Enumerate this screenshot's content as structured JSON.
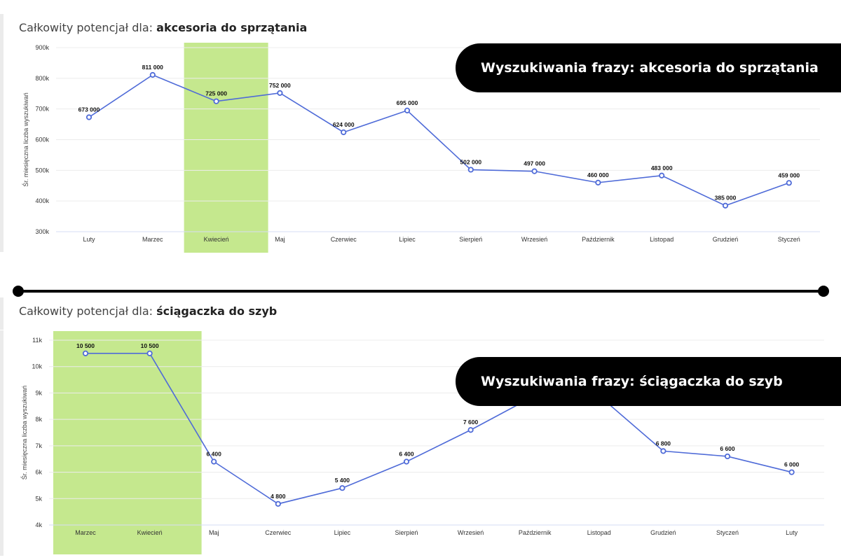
{
  "chart_data": [
    {
      "type": "line",
      "title_prefix": "Całkowity potencjał dla:",
      "title_keyword": "akcesoria do sprzątania",
      "ylabel": "Śr. miesięczna liczba wyszukiwań",
      "ylim": [
        300000,
        900000
      ],
      "yticks": [
        300000,
        400000,
        500000,
        600000,
        700000,
        800000,
        900000
      ],
      "ytick_labels": [
        "300k",
        "400k",
        "500k",
        "600k",
        "700k",
        "800k",
        "900k"
      ],
      "categories": [
        "Luty",
        "Marzec",
        "Kwiecień",
        "Maj",
        "Czerwiec",
        "Lipiec",
        "Sierpień",
        "Wrzesień",
        "Październik",
        "Listopad",
        "Grudzień",
        "Styczeń"
      ],
      "series": [
        {
          "values": [
            673000,
            811000,
            725000,
            752000,
            624000,
            695000,
            502000,
            497000,
            460000,
            483000,
            385000,
            459000
          ],
          "labels": [
            "673 000",
            "811 000",
            "725 000",
            "752 000",
            "624 000",
            "695 000",
            "502 000",
            "497 000",
            "460 000",
            "483 000",
            "385 000",
            "459 000"
          ]
        }
      ],
      "highlight_categories": [
        "Kwiecień"
      ],
      "grid": true,
      "banner": "Wyszukiwania frazy: akcesoria do sprzątania"
    },
    {
      "type": "line",
      "title_prefix": "Całkowity potencjał dla:",
      "title_keyword": "ściągaczka do szyb",
      "ylabel": "Śr. miesięczna liczba wyszukiwań",
      "ylim": [
        4000,
        11000
      ],
      "yticks": [
        4000,
        5000,
        6000,
        7000,
        8000,
        9000,
        10000,
        11000
      ],
      "ytick_labels": [
        "4k",
        "5k",
        "6k",
        "7k",
        "8k",
        "9k",
        "10k",
        "11k"
      ],
      "categories": [
        "Marzec",
        "Kwiecień",
        "Maj",
        "Czerwiec",
        "Lipiec",
        "Sierpień",
        "Wrzesień",
        "Październik",
        "Listopad",
        "Grudzień",
        "Styczeń",
        "Luty"
      ],
      "series": [
        {
          "values": [
            10500,
            10500,
            6400,
            4800,
            5400,
            6400,
            7600,
            8900,
            8900,
            6800,
            6600,
            6000
          ],
          "labels": [
            "10 500",
            "10 500",
            "6 400",
            "4 800",
            "5 400",
            "6 400",
            "7 600",
            "",
            "",
            "6 800",
            "6 600",
            "6 000"
          ]
        }
      ],
      "highlight_categories": [
        "Marzec",
        "Kwiecień"
      ],
      "grid": true,
      "banner": "Wyszukiwania frazy: ściągaczka do szyb"
    }
  ],
  "colors": {
    "line": "#4f6bd8",
    "highlight": "#c5e88e",
    "grid": "#ececec",
    "banner_bg": "#000000",
    "banner_text": "#ffffff"
  }
}
